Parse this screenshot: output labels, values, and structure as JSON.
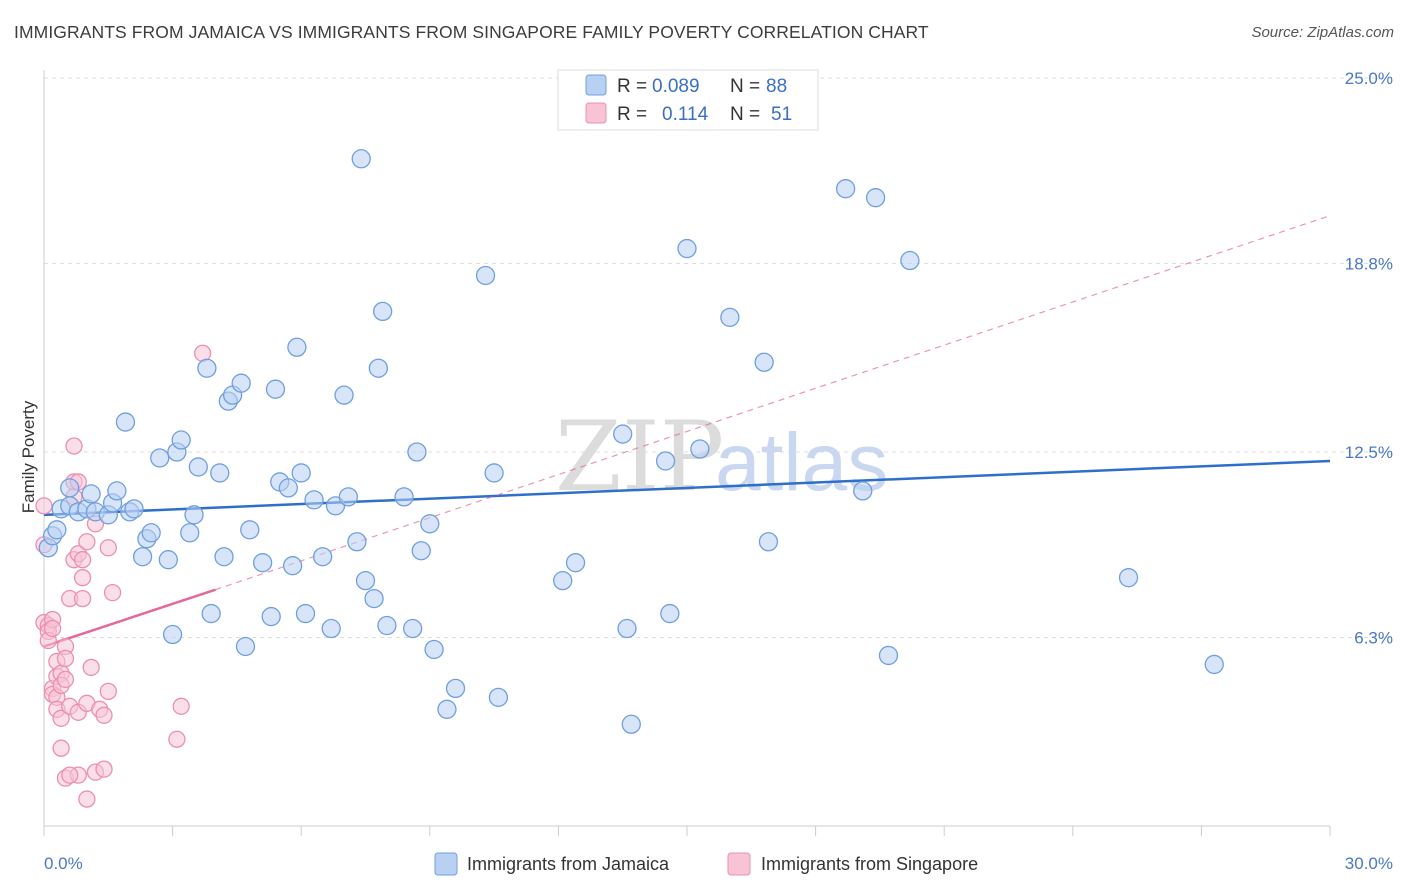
{
  "title": "IMMIGRANTS FROM JAMAICA VS IMMIGRANTS FROM SINGAPORE FAMILY POVERTY CORRELATION CHART",
  "source": "Source: ZipAtlas.com",
  "watermark": {
    "zip": "ZIP",
    "atlas": "atlas"
  },
  "colors": {
    "jamaica_fill": "#b8d0f2",
    "jamaica_stroke": "#6f9fe0",
    "jamaica_line": "#2f6fcc",
    "singapore_fill": "#f8c4d5",
    "singapore_stroke": "#ec8fae",
    "singapore_line": "#e5689a",
    "tick_text": "#4a78c4",
    "grid": "#dddddd"
  },
  "legend": {
    "r_label": "R =",
    "n_label": "N =",
    "rows": [
      {
        "r": "0.089",
        "n": "88"
      },
      {
        "r": "0.114",
        "n": "51"
      }
    ]
  },
  "chart_data": {
    "type": "scatter",
    "xlabel": "",
    "ylabel": "Family Poverty",
    "xlim": [
      0,
      30
    ],
    "ylim": [
      0,
      25
    ],
    "x_tick_labels": [
      "0.0%",
      "30.0%"
    ],
    "y_ticks": [
      6.3,
      12.5,
      18.8,
      25.0
    ],
    "y_tick_labels": [
      "6.3%",
      "12.5%",
      "18.8%",
      "25.0%"
    ],
    "grid": true,
    "legend_position": "top-center",
    "series": [
      {
        "name": "Immigrants from Jamaica",
        "r": 0.089,
        "n": 88,
        "trend": {
          "x0": 0,
          "y0": 10.4,
          "x1": 30,
          "y1": 12.2,
          "dashed_extension": false
        },
        "points": [
          [
            0.1,
            9.3
          ],
          [
            0.2,
            9.7
          ],
          [
            0.4,
            10.6
          ],
          [
            0.6,
            11.3
          ],
          [
            0.6,
            10.7
          ],
          [
            0.8,
            10.5
          ],
          [
            1.0,
            10.6
          ],
          [
            1.1,
            11.1
          ],
          [
            1.2,
            10.5
          ],
          [
            1.5,
            10.4
          ],
          [
            1.6,
            10.8
          ],
          [
            1.7,
            11.2
          ],
          [
            1.9,
            13.5
          ],
          [
            2.0,
            10.5
          ],
          [
            2.1,
            10.6
          ],
          [
            2.3,
            9.0
          ],
          [
            2.4,
            9.6
          ],
          [
            2.5,
            9.8
          ],
          [
            2.7,
            12.3
          ],
          [
            2.9,
            8.9
          ],
          [
            3.0,
            6.4
          ],
          [
            3.1,
            12.5
          ],
          [
            3.2,
            12.9
          ],
          [
            3.4,
            9.8
          ],
          [
            3.5,
            10.4
          ],
          [
            3.6,
            12.0
          ],
          [
            3.8,
            15.3
          ],
          [
            3.9,
            7.1
          ],
          [
            4.1,
            11.8
          ],
          [
            4.2,
            9.0
          ],
          [
            4.3,
            14.2
          ],
          [
            4.4,
            14.4
          ],
          [
            4.6,
            14.8
          ],
          [
            4.7,
            6.0
          ],
          [
            4.8,
            9.9
          ],
          [
            5.1,
            8.8
          ],
          [
            5.3,
            7.0
          ],
          [
            5.4,
            14.6
          ],
          [
            5.5,
            11.5
          ],
          [
            5.7,
            11.3
          ],
          [
            5.8,
            8.7
          ],
          [
            5.9,
            16.0
          ],
          [
            6.0,
            11.8
          ],
          [
            6.1,
            7.1
          ],
          [
            6.3,
            10.9
          ],
          [
            6.5,
            9.0
          ],
          [
            6.7,
            6.6
          ],
          [
            6.8,
            10.7
          ],
          [
            7.0,
            14.4
          ],
          [
            7.1,
            11.0
          ],
          [
            7.3,
            9.5
          ],
          [
            7.4,
            22.3
          ],
          [
            7.5,
            8.2
          ],
          [
            7.7,
            7.6
          ],
          [
            7.8,
            15.3
          ],
          [
            7.9,
            17.2
          ],
          [
            8.0,
            6.7
          ],
          [
            8.4,
            11.0
          ],
          [
            8.6,
            6.6
          ],
          [
            8.7,
            12.5
          ],
          [
            8.8,
            9.2
          ],
          [
            9.0,
            10.1
          ],
          [
            9.1,
            5.9
          ],
          [
            9.4,
            3.9
          ],
          [
            9.6,
            4.6
          ],
          [
            10.3,
            18.4
          ],
          [
            10.5,
            11.8
          ],
          [
            10.6,
            4.3
          ],
          [
            12.1,
            8.2
          ],
          [
            12.4,
            8.8
          ],
          [
            13.5,
            13.1
          ],
          [
            13.6,
            6.6
          ],
          [
            13.7,
            3.4
          ],
          [
            14.5,
            12.2
          ],
          [
            14.6,
            7.1
          ],
          [
            15.0,
            19.3
          ],
          [
            15.3,
            12.6
          ],
          [
            16.0,
            17.0
          ],
          [
            16.8,
            15.5
          ],
          [
            16.9,
            9.5
          ],
          [
            18.7,
            21.3
          ],
          [
            19.1,
            11.2
          ],
          [
            19.4,
            21.0
          ],
          [
            19.7,
            5.7
          ],
          [
            20.2,
            18.9
          ],
          [
            25.3,
            8.3
          ],
          [
            27.3,
            5.4
          ],
          [
            0.3,
            9.9
          ]
        ]
      },
      {
        "name": "Immigrants from Singapore",
        "r": 0.114,
        "n": 51,
        "trend": {
          "x0": 0,
          "y0": 6.0,
          "x1": 4,
          "y1": 7.9,
          "dashed_extension": true,
          "dash_x1": 30,
          "dash_y1": 20.4
        },
        "points": [
          [
            0.0,
            10.7
          ],
          [
            0.0,
            9.4
          ],
          [
            0.0,
            6.8
          ],
          [
            0.1,
            6.7
          ],
          [
            0.1,
            6.5
          ],
          [
            0.1,
            6.2
          ],
          [
            0.2,
            6.9
          ],
          [
            0.2,
            6.6
          ],
          [
            0.2,
            4.6
          ],
          [
            0.2,
            4.4
          ],
          [
            0.3,
            5.5
          ],
          [
            0.3,
            5.0
          ],
          [
            0.3,
            4.3
          ],
          [
            0.3,
            3.9
          ],
          [
            0.4,
            5.1
          ],
          [
            0.4,
            4.7
          ],
          [
            0.4,
            3.6
          ],
          [
            0.4,
            2.6
          ],
          [
            0.5,
            6.0
          ],
          [
            0.5,
            5.6
          ],
          [
            0.5,
            4.9
          ],
          [
            0.5,
            1.6
          ],
          [
            0.6,
            7.6
          ],
          [
            0.6,
            4.0
          ],
          [
            0.7,
            11.5
          ],
          [
            0.7,
            11.0
          ],
          [
            0.7,
            8.9
          ],
          [
            0.7,
            12.7
          ],
          [
            0.8,
            11.5
          ],
          [
            0.8,
            9.1
          ],
          [
            0.8,
            3.8
          ],
          [
            0.8,
            1.7
          ],
          [
            0.9,
            8.3
          ],
          [
            0.9,
            8.9
          ],
          [
            0.9,
            7.6
          ],
          [
            1.0,
            9.5
          ],
          [
            1.0,
            4.1
          ],
          [
            1.0,
            0.9
          ],
          [
            1.1,
            5.3
          ],
          [
            1.2,
            1.8
          ],
          [
            1.2,
            10.1
          ],
          [
            1.3,
            3.9
          ],
          [
            1.4,
            1.9
          ],
          [
            1.4,
            3.7
          ],
          [
            1.5,
            9.3
          ],
          [
            1.5,
            4.5
          ],
          [
            1.6,
            7.8
          ],
          [
            3.1,
            2.9
          ],
          [
            3.2,
            4.0
          ],
          [
            3.7,
            15.8
          ],
          [
            0.6,
            1.7
          ]
        ]
      }
    ]
  }
}
